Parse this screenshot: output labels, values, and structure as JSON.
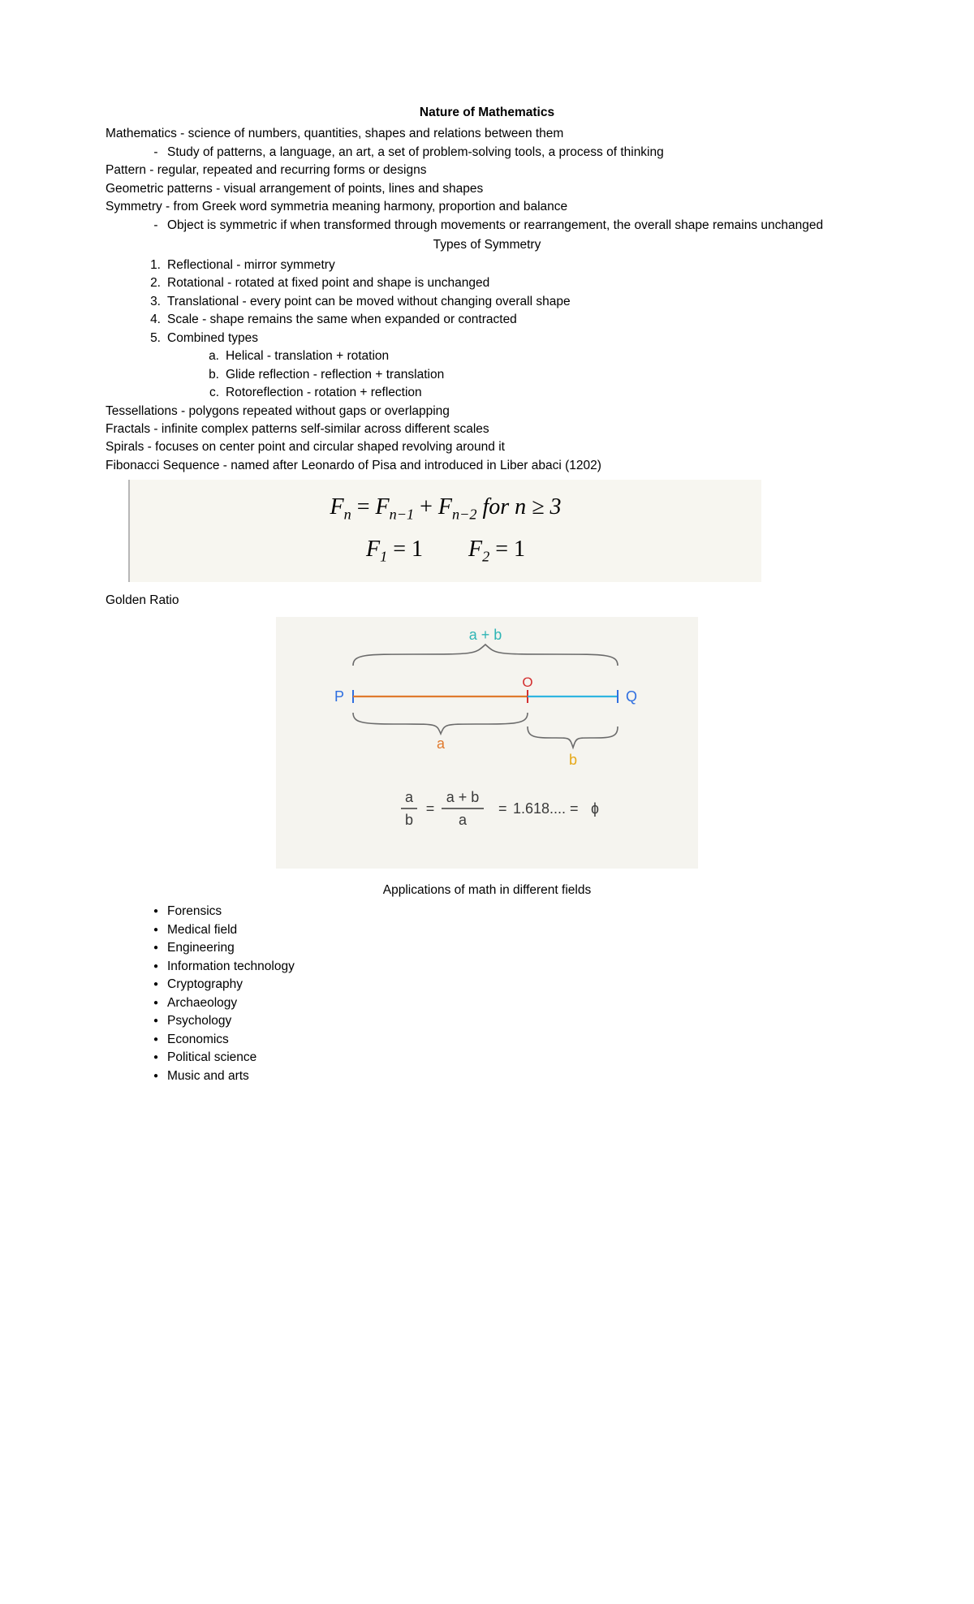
{
  "title": "Nature of Mathematics",
  "defs": {
    "mathematics": "Mathematics - science of numbers, quantities, shapes and relations between them",
    "mathematics_sub": "Study of patterns, a language, an art, a set of problem-solving tools, a process of thinking",
    "pattern": "Pattern - regular, repeated and recurring forms or designs",
    "geometric": "Geometric patterns - visual arrangement of points, lines and shapes",
    "symmetry": "Symmetry - from Greek word symmetria meaning harmony, proportion and balance",
    "symmetry_sub": "Object is symmetric if when transformed through movements or rearrangement, the overall shape remains unchanged"
  },
  "types_heading": "Types of Symmetry",
  "types": {
    "1": "Reflectional - mirror symmetry",
    "2": "Rotational - rotated at fixed point and shape is unchanged",
    "3": "Translational - every point can be moved without changing overall shape",
    "4": "Scale - shape remains the same when expanded or contracted",
    "5": "Combined types",
    "5a": "Helical - translation + rotation",
    "5b": "Glide reflection - reflection + translation",
    "5c": "Rotoreflection - rotation + reflection"
  },
  "more_defs": {
    "tessellations": "Tessellations - polygons repeated without gaps or overlapping",
    "fractals": "Fractals - infinite complex patterns self-similar across different scales",
    "spirals": "Spirals - focuses on center point and circular shaped revolving around it",
    "fibonacci": "Fibonacci Sequence - named after Leonardo of Pisa and introduced in Liber abaci (1202)"
  },
  "fib_formula": {
    "background": "#f7f6f0",
    "font_color": "#000000",
    "line1_parts": {
      "Fn": "F",
      "n": "n",
      "eq": " = ",
      "Fn1": "F",
      "n1": "n−1",
      "plus": " + ",
      "Fn2": "F",
      "n2": "n−2",
      "rest": " for n  ≥ 3"
    },
    "line2_parts": {
      "F1lhs": "F",
      "one": "1",
      "eq1": " = 1",
      "gap": "        ",
      "F2lhs": "F",
      "two": "2",
      "eq2": " = 1"
    }
  },
  "golden_label": "Golden Ratio",
  "golden_ratio": {
    "background": "#f5f4ef",
    "colors": {
      "ab_label": "#2fb5b5",
      "b_label": "#e6a817",
      "a_label": "#e07a2e",
      "P_Q": "#2f6fe0",
      "O_red": "#d32f2f",
      "brace_grey": "#6b6b6b",
      "line_a": "#e07a2e",
      "line_b": "#2fb5e0",
      "tick_blue": "#2f6fe0",
      "tick_red": "#d32f2f",
      "formula": "#3a3a3a"
    },
    "labels": {
      "ab": "a + b",
      "a": "a",
      "b": "b",
      "P": "P",
      "Q": "Q",
      "O": "O"
    },
    "formula": {
      "value": "1.618....",
      "phi": "ɸ"
    }
  },
  "applications_heading": "Applications of math in different fields",
  "applications": [
    "Forensics",
    "Medical field",
    "Engineering",
    "Information technology",
    "Cryptography",
    "Archaeology",
    "Psychology",
    "Economics",
    "Political science",
    "Music and arts"
  ]
}
